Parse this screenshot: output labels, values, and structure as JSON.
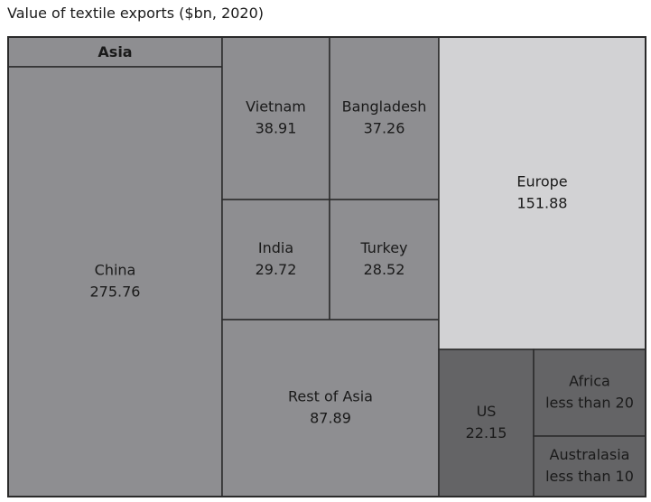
{
  "chart_data": {
    "type": "treemap",
    "title": "Value of textile exports ($bn, 2020)",
    "groups": [
      {
        "name": "Asia",
        "items": [
          {
            "name": "China",
            "value": 275.76,
            "label": "275.76"
          },
          {
            "name": "Vietnam",
            "value": 38.91,
            "label": "38.91"
          },
          {
            "name": "Bangladesh",
            "value": 37.26,
            "label": "37.26"
          },
          {
            "name": "India",
            "value": 29.72,
            "label": "29.72"
          },
          {
            "name": "Turkey",
            "value": 28.52,
            "label": "28.52"
          },
          {
            "name": "Rest of Asia",
            "value": 87.89,
            "label": "87.89"
          }
        ]
      },
      {
        "name": "",
        "items": [
          {
            "name": "Europe",
            "value": 151.88,
            "label": "151.88"
          },
          {
            "name": "US",
            "value": 22.15,
            "label": "22.15"
          },
          {
            "name": "Africa",
            "value": null,
            "label": "less than 20"
          },
          {
            "name": "Australasia",
            "value": null,
            "label": "less than 10"
          }
        ]
      }
    ],
    "colors": {
      "asia": "#8e8e91",
      "europe": "#d2d2d4",
      "other": "#646466",
      "border": "#2a2a2a"
    }
  }
}
